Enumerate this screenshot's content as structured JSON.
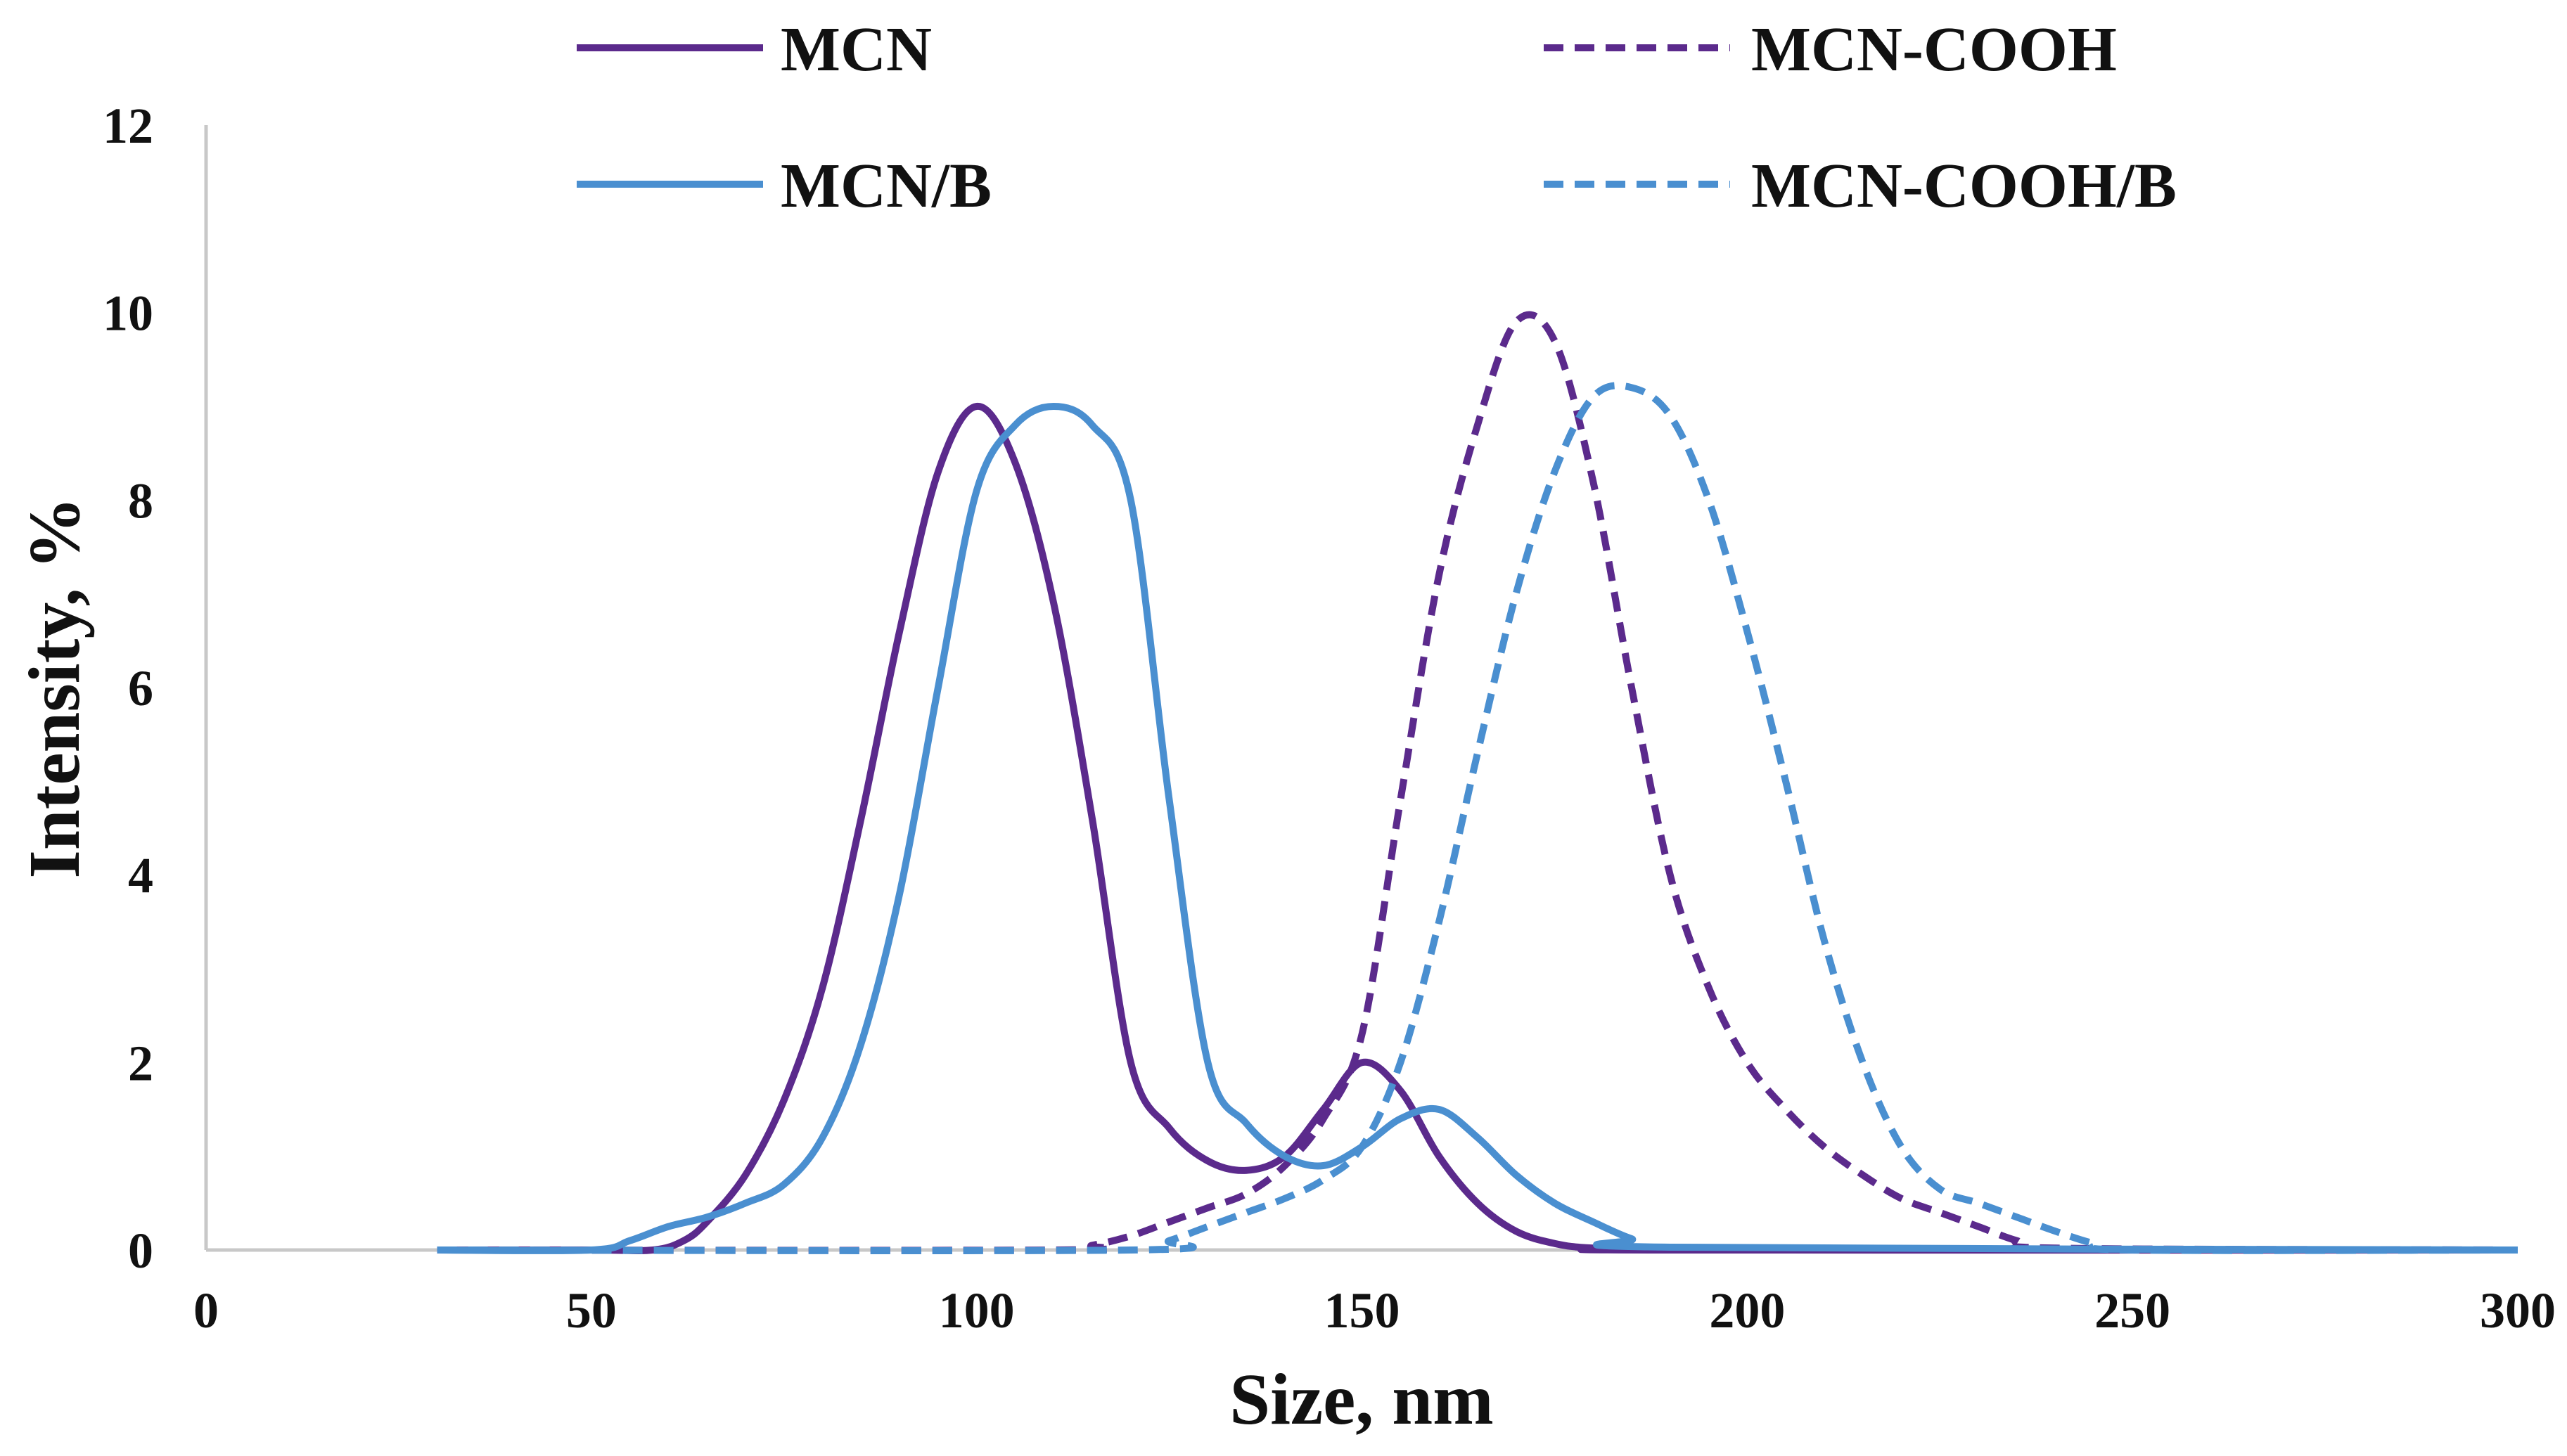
{
  "chart_data": {
    "type": "line",
    "title": "",
    "xlabel": "Size, nm",
    "ylabel": "Intensity, %",
    "xlim": [
      0,
      300
    ],
    "ylim": [
      0,
      12
    ],
    "xticks": [
      0,
      50,
      100,
      150,
      200,
      250,
      300
    ],
    "yticks": [
      0,
      2,
      4,
      6,
      8,
      10,
      12
    ],
    "grid": false,
    "legend_position": "top",
    "series": [
      {
        "name": "MCN",
        "color": "#5b2a8c",
        "dash": "solid",
        "x": [
          30,
          50,
          58,
          62,
          65,
          70,
          75,
          80,
          85,
          90,
          95,
          100,
          105,
          110,
          115,
          120,
          125,
          130,
          135,
          140,
          145,
          150,
          155,
          160,
          165,
          170,
          175,
          180,
          190,
          300
        ],
        "y": [
          0,
          0,
          0,
          0.1,
          0.3,
          0.8,
          1.6,
          2.8,
          4.6,
          6.6,
          8.3,
          9.0,
          8.4,
          6.9,
          4.6,
          2.0,
          1.3,
          0.95,
          0.85,
          1.0,
          1.5,
          2.0,
          1.7,
          1.0,
          0.5,
          0.2,
          0.07,
          0.02,
          0,
          0
        ]
      },
      {
        "name": "MCN-COOH",
        "color": "#5b2a8c",
        "dash": "dashed",
        "x": [
          30,
          110,
          115,
          120,
          125,
          130,
          135,
          140,
          145,
          150,
          155,
          160,
          165,
          170,
          175,
          180,
          185,
          190,
          195,
          200,
          205,
          210,
          215,
          220,
          225,
          230,
          235,
          240,
          300
        ],
        "y": [
          0,
          0,
          0.05,
          0.15,
          0.3,
          0.45,
          0.6,
          0.9,
          1.4,
          2.3,
          4.8,
          7.2,
          8.8,
          9.9,
          9.7,
          8.2,
          6.0,
          4.0,
          2.8,
          2.0,
          1.5,
          1.1,
          0.8,
          0.55,
          0.4,
          0.25,
          0.1,
          0.02,
          0
        ]
      },
      {
        "name": "MCN/B",
        "color": "#4a8fd0",
        "dash": "solid",
        "x": [
          30,
          50,
          55,
          60,
          65,
          70,
          75,
          80,
          85,
          90,
          95,
          100,
          105,
          110,
          115,
          120,
          125,
          130,
          135,
          140,
          145,
          150,
          155,
          160,
          165,
          170,
          175,
          180,
          185,
          190,
          300
        ],
        "y": [
          0,
          0,
          0.1,
          0.25,
          0.35,
          0.5,
          0.7,
          1.2,
          2.2,
          3.8,
          6.0,
          8.1,
          8.8,
          9.0,
          8.8,
          8.0,
          4.8,
          2.0,
          1.35,
          1.0,
          0.9,
          1.1,
          1.4,
          1.5,
          1.2,
          0.8,
          0.5,
          0.3,
          0.12,
          0.03,
          0
        ]
      },
      {
        "name": "MCN-COOH/B",
        "color": "#4a8fd0",
        "dash": "dashed",
        "x": [
          30,
          120,
          125,
          130,
          135,
          140,
          145,
          150,
          155,
          160,
          165,
          170,
          175,
          180,
          185,
          190,
          195,
          200,
          205,
          210,
          215,
          220,
          225,
          230,
          235,
          240,
          245,
          250,
          300
        ],
        "y": [
          0,
          0,
          0.1,
          0.25,
          0.4,
          0.55,
          0.75,
          1.1,
          2.0,
          3.5,
          5.3,
          7.0,
          8.3,
          9.1,
          9.2,
          8.9,
          8.0,
          6.6,
          5.0,
          3.3,
          2.0,
          1.1,
          0.65,
          0.5,
          0.35,
          0.2,
          0.07,
          0,
          0
        ]
      }
    ]
  }
}
